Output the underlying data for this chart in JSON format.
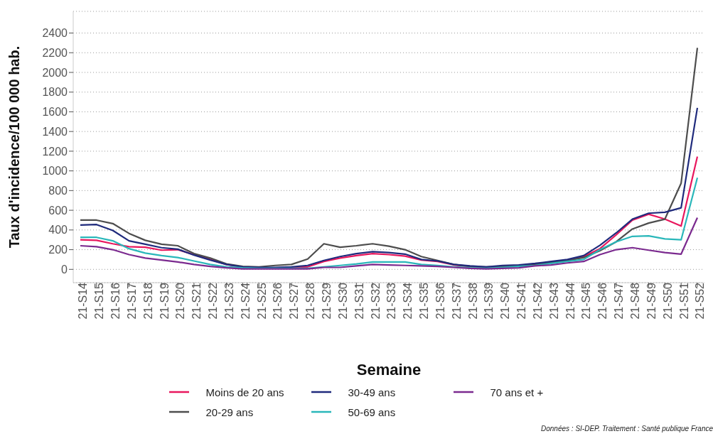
{
  "chart_data": {
    "type": "line",
    "xlabel": "Semaine",
    "ylabel": "Taux d'incidence/100 000 hab.",
    "categories": [
      "21-S14",
      "21-S15",
      "21-S16",
      "21-S17",
      "21-S18",
      "21-S19",
      "21-S20",
      "21-S21",
      "21-S22",
      "21-S23",
      "21-S24",
      "21-S25",
      "21-S26",
      "21-S27",
      "21-S28",
      "21-S29",
      "21-S30",
      "21-S31",
      "21-S32",
      "21-S33",
      "21-S34",
      "21-S35",
      "21-S36",
      "21-S37",
      "21-S38",
      "21-S39",
      "21-S40",
      "21-S41",
      "21-S42",
      "21-S43",
      "21-S44",
      "21-S45",
      "21-S46",
      "21-S47",
      "21-S48",
      "21-S49",
      "21-S50",
      "21-S51",
      "21-S52"
    ],
    "series": [
      {
        "name": "Moins de 20 ans",
        "color": "#e8175d",
        "values": [
          300,
          295,
          260,
          230,
          225,
          195,
          200,
          150,
          100,
          50,
          25,
          15,
          15,
          20,
          25,
          80,
          115,
          140,
          160,
          150,
          135,
          95,
          80,
          45,
          30,
          20,
          30,
          35,
          50,
          70,
          85,
          130,
          210,
          350,
          500,
          560,
          510,
          440,
          1145
        ]
      },
      {
        "name": "20-29 ans",
        "color": "#4d4d4d",
        "values": [
          500,
          500,
          465,
          365,
          295,
          255,
          240,
          160,
          115,
          55,
          30,
          25,
          40,
          50,
          105,
          260,
          225,
          240,
          260,
          235,
          200,
          130,
          90,
          50,
          30,
          25,
          30,
          40,
          50,
          70,
          90,
          120,
          190,
          280,
          410,
          470,
          510,
          875,
          2250
        ]
      },
      {
        "name": "30-49 ans",
        "color": "#1f2a7c",
        "values": [
          450,
          455,
          395,
          290,
          255,
          220,
          205,
          145,
          95,
          50,
          25,
          20,
          20,
          25,
          40,
          90,
          130,
          160,
          180,
          170,
          155,
          100,
          85,
          50,
          35,
          25,
          40,
          45,
          60,
          80,
          100,
          140,
          245,
          370,
          510,
          570,
          580,
          625,
          1640
        ]
      },
      {
        "name": "50-69 ans",
        "color": "#2ab7ba",
        "values": [
          325,
          325,
          290,
          210,
          165,
          140,
          120,
          85,
          50,
          25,
          15,
          10,
          10,
          10,
          10,
          25,
          40,
          55,
          75,
          75,
          75,
          50,
          40,
          25,
          15,
          10,
          20,
          30,
          40,
          60,
          80,
          100,
          200,
          280,
          335,
          340,
          310,
          300,
          930
        ]
      },
      {
        "name": "70 ans et +",
        "color": "#7b2a8f",
        "values": [
          240,
          230,
          200,
          150,
          115,
          95,
          75,
          50,
          30,
          15,
          5,
          5,
          5,
          5,
          5,
          20,
          20,
          35,
          50,
          45,
          40,
          35,
          30,
          20,
          10,
          5,
          10,
          15,
          35,
          45,
          65,
          80,
          150,
          200,
          220,
          195,
          170,
          155,
          525
        ]
      }
    ],
    "ylim": [
      -135,
      2620
    ],
    "yticks": [
      0,
      200,
      400,
      600,
      800,
      1000,
      1200,
      1400,
      1600,
      1800,
      2000,
      2200,
      2400
    ],
    "grid": "y",
    "legend": "bottom",
    "marker": "none",
    "line_style": "solid",
    "annotations": [
      "Données : SI-DEP. Traitement : Santé publique France"
    ]
  }
}
